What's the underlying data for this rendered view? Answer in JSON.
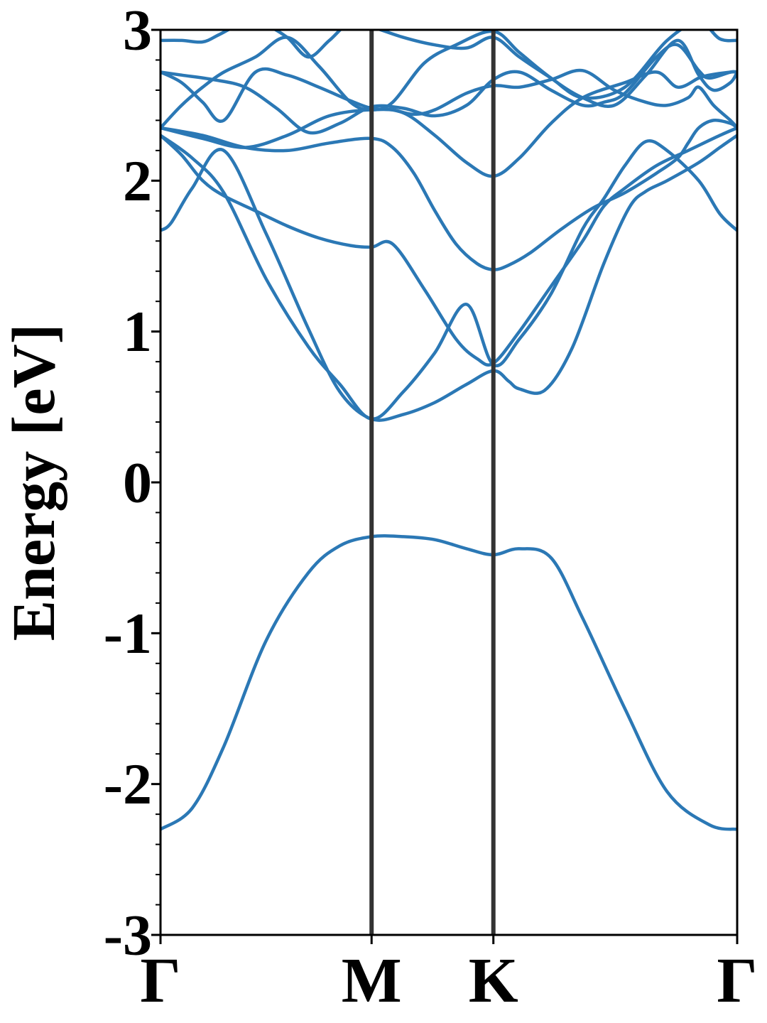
{
  "chart_data": {
    "type": "line",
    "title": "",
    "ylabel": "Energy [eV]",
    "xlabel": "",
    "ylim": [
      -3,
      3
    ],
    "yticks": [
      -3,
      -2,
      -1,
      0,
      1,
      2,
      3
    ],
    "yticks_minor_step": 0.2,
    "xlim": [
      0,
      2.732
    ],
    "kpath_labels": [
      "Γ",
      "M",
      "K",
      "Γ"
    ],
    "kpath_positions": [
      0,
      1,
      1.577,
      2.732
    ],
    "grid": false,
    "legend": "none",
    "colors": {
      "bands": "#2b78b5",
      "high_symmetry_lines": "#333333",
      "axes": "#000000"
    },
    "series": [
      {
        "x": [
          0.0,
          0.15,
          0.3,
          0.5,
          0.7,
          0.85,
          1.0,
          1.15,
          1.3,
          1.45,
          1.577,
          1.7,
          1.85,
          2.0,
          2.2,
          2.4,
          2.6,
          2.732
        ],
        "values": [
          -2.3,
          -2.16,
          -1.75,
          -1.05,
          -0.6,
          -0.42,
          -0.36,
          -0.36,
          -0.38,
          -0.44,
          -0.48,
          -0.44,
          -0.5,
          -0.9,
          -1.5,
          -2.05,
          -2.27,
          -2.3
        ]
      },
      {
        "x": [
          0.0,
          0.05,
          0.15,
          0.3,
          0.5,
          0.7,
          0.85,
          1.0,
          1.15,
          1.3,
          1.45,
          1.577,
          1.65,
          1.7,
          1.82,
          1.95,
          2.1,
          2.22,
          2.3,
          2.4,
          2.55,
          2.65,
          2.732
        ],
        "values": [
          1.67,
          1.72,
          1.95,
          2.2,
          1.65,
          1.02,
          0.6,
          0.42,
          0.45,
          0.53,
          0.65,
          0.74,
          0.67,
          0.62,
          0.61,
          0.89,
          1.45,
          1.82,
          1.93,
          2.0,
          2.12,
          2.22,
          2.3
        ]
      },
      {
        "x": [
          0.0,
          0.15,
          0.3,
          0.5,
          0.7,
          0.85,
          1.0,
          1.15,
          1.3,
          1.45,
          1.577,
          1.7,
          1.85,
          2.0,
          2.1,
          2.2,
          2.3,
          2.4,
          2.55,
          2.65,
          2.732
        ],
        "values": [
          2.3,
          2.15,
          1.92,
          1.35,
          0.9,
          0.65,
          0.42,
          0.6,
          0.86,
          1.18,
          0.78,
          0.95,
          1.25,
          1.68,
          1.88,
          2.1,
          2.26,
          2.2,
          2.0,
          1.78,
          1.67
        ]
      },
      {
        "x": [
          0.0,
          0.1,
          0.2,
          0.3,
          0.45,
          0.6,
          0.75,
          0.9,
          1.0,
          1.1,
          1.25,
          1.4,
          1.5,
          1.577,
          1.7,
          1.85,
          2.0,
          2.1,
          2.2,
          2.35,
          2.5,
          2.65,
          2.732
        ],
        "values": [
          2.3,
          2.17,
          2.0,
          1.9,
          1.8,
          1.7,
          1.62,
          1.57,
          1.56,
          1.58,
          1.28,
          0.95,
          0.82,
          0.79,
          1.0,
          1.3,
          1.6,
          1.83,
          1.95,
          2.1,
          2.2,
          2.3,
          2.35
        ]
      },
      {
        "x": [
          0.0,
          0.2,
          0.4,
          0.6,
          0.8,
          1.0,
          1.1,
          1.2,
          1.3,
          1.4,
          1.5,
          1.577,
          1.65,
          1.75,
          1.9,
          2.05,
          2.2,
          2.35,
          2.45,
          2.5,
          2.55,
          2.62,
          2.7,
          2.732
        ],
        "values": [
          2.35,
          2.3,
          2.22,
          2.2,
          2.25,
          2.28,
          2.22,
          2.05,
          1.8,
          1.58,
          1.45,
          1.41,
          1.44,
          1.52,
          1.68,
          1.82,
          1.92,
          2.05,
          2.15,
          2.25,
          2.35,
          2.4,
          2.38,
          2.35
        ]
      },
      {
        "x": [
          0.0,
          0.2,
          0.4,
          0.6,
          0.8,
          1.0,
          1.15,
          1.3,
          1.45,
          1.577,
          1.7,
          1.85,
          2.0,
          2.2,
          2.35,
          2.45,
          2.55,
          2.6,
          2.7,
          2.732
        ],
        "values": [
          2.35,
          2.28,
          2.22,
          2.3,
          2.43,
          2.47,
          2.45,
          2.3,
          2.12,
          2.03,
          2.15,
          2.38,
          2.55,
          2.65,
          2.72,
          2.62,
          2.68,
          2.7,
          2.72,
          2.72
        ]
      },
      {
        "x": [
          0.0,
          0.1,
          0.2,
          0.3,
          0.45,
          0.6,
          0.75,
          0.9,
          1.0,
          1.1,
          1.2,
          1.3,
          1.45,
          1.577,
          1.7,
          1.85,
          2.0,
          2.15,
          2.3,
          2.4,
          2.5,
          2.55,
          2.62,
          2.7,
          2.732
        ],
        "values": [
          2.72,
          2.65,
          2.52,
          2.4,
          2.72,
          2.7,
          2.62,
          2.53,
          2.48,
          2.47,
          2.44,
          2.47,
          2.58,
          2.63,
          2.62,
          2.67,
          2.73,
          2.6,
          2.52,
          2.5,
          2.55,
          2.62,
          2.5,
          2.4,
          2.35
        ]
      },
      {
        "x": [
          0.0,
          0.1,
          0.25,
          0.4,
          0.55,
          0.7,
          0.85,
          1.0,
          1.15,
          1.3,
          1.45,
          1.577,
          1.7,
          1.85,
          2.0,
          2.1,
          2.2,
          2.35,
          2.45,
          2.55,
          2.6,
          2.7,
          2.732
        ],
        "values": [
          2.72,
          2.7,
          2.67,
          2.62,
          2.48,
          2.32,
          2.38,
          2.49,
          2.48,
          2.43,
          2.5,
          2.67,
          2.72,
          2.6,
          2.5,
          2.52,
          2.58,
          2.82,
          2.9,
          2.73,
          2.68,
          2.72,
          2.72
        ]
      },
      {
        "x": [
          0.0,
          0.1,
          0.2,
          0.3,
          0.45,
          0.6,
          0.75,
          0.9,
          1.0,
          1.1,
          1.25,
          1.4,
          1.577,
          1.7,
          1.85,
          2.0,
          2.15,
          2.3,
          2.45,
          2.55,
          2.62,
          2.7,
          2.732
        ],
        "values": [
          2.35,
          2.5,
          2.62,
          2.72,
          2.82,
          2.95,
          2.76,
          2.52,
          2.47,
          2.52,
          2.78,
          2.9,
          2.99,
          2.85,
          2.68,
          2.55,
          2.5,
          2.7,
          2.93,
          2.7,
          2.6,
          2.65,
          2.72
        ]
      },
      {
        "x": [
          0.0,
          0.1,
          0.2,
          0.28,
          0.4,
          0.5,
          0.6,
          0.7,
          0.8,
          0.9,
          1.0,
          1.15,
          1.3,
          1.45,
          1.577,
          1.7,
          1.85,
          2.0,
          2.2,
          2.4,
          2.55,
          2.65,
          2.732
        ],
        "values": [
          2.93,
          2.93,
          2.92,
          2.97,
          3.05,
          3.03,
          2.95,
          2.82,
          2.93,
          3.05,
          3.02,
          2.95,
          2.9,
          2.88,
          2.95,
          2.82,
          2.68,
          2.55,
          2.62,
          2.93,
          3.05,
          2.94,
          2.93
        ]
      }
    ]
  }
}
